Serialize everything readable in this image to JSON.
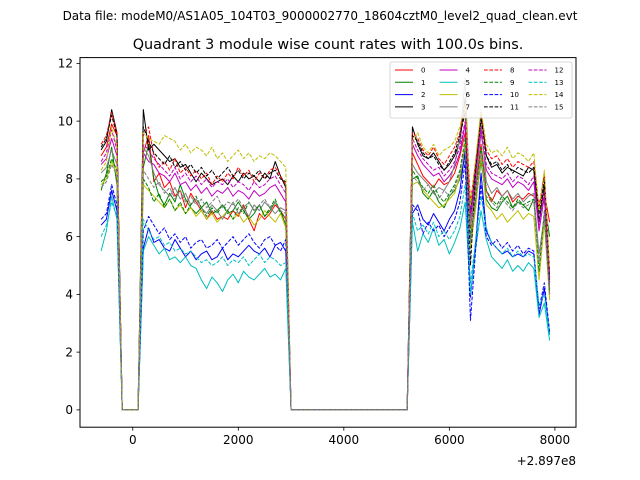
{
  "suptitle": "Data file: modeM0/AS1A05_104T03_9000002770_18604cztM0_level2_quad_clean.evt",
  "chart_data": {
    "type": "line",
    "title": "Quadrant 3 module wise count rates with 100.0s bins.",
    "xlabel": "",
    "ylabel": "",
    "x_offset_label": "+2.897e8",
    "xlim": [
      -1000,
      8400
    ],
    "ylim": [
      -0.6,
      12.2
    ],
    "xticks": [
      0,
      2000,
      4000,
      6000,
      8000
    ],
    "xtick_labels": [
      "0",
      "2000",
      "4000",
      "6000",
      "8000"
    ],
    "yticks": [
      0,
      2,
      4,
      6,
      8,
      10,
      12
    ],
    "ytick_labels": [
      "0",
      "2",
      "4",
      "6",
      "8",
      "10",
      "12"
    ],
    "grid": false,
    "legend_position": "top-right",
    "x_segments": [
      {
        "start": -600,
        "end": 3000,
        "step": 100
      },
      {
        "start": 5100,
        "end": 7900,
        "step": 100
      }
    ],
    "series": [
      {
        "name": "0",
        "color": "#ff0000",
        "dash": "solid",
        "seg1": [
          8.8,
          9.1,
          9.9,
          9.5,
          0,
          0,
          0,
          0,
          8.9,
          9.5,
          7.9,
          8.2,
          7.7,
          7.9,
          7.4,
          7.6,
          7.0,
          7.5,
          7.2,
          6.9,
          6.6,
          6.9,
          6.6,
          6.7,
          6.6,
          6.9,
          6.7,
          7.1,
          6.6,
          6.2,
          6.8,
          6.6,
          6.8,
          7.1,
          6.9,
          6.6,
          0
        ],
        "seg2": [
          0,
          0,
          8.9,
          8.5,
          8.1,
          7.9,
          7.7,
          8.0,
          7.8,
          7.9,
          8.2,
          8.8,
          9.6,
          6.3,
          7.7,
          9.2,
          7.6,
          7.2,
          7.6,
          7.4,
          7.6,
          7.2,
          7.4,
          7.3,
          7.5,
          7.4,
          7.2,
          7.5,
          6.5
        ]
      },
      {
        "name": "1",
        "color": "#008000",
        "dash": "solid",
        "seg1": [
          7.6,
          8.2,
          9.1,
          7.8,
          0,
          0,
          0,
          0,
          8.4,
          9.2,
          8.0,
          7.4,
          7.1,
          7.5,
          7.2,
          7.8,
          7.3,
          7.0,
          6.8,
          7.0,
          7.2,
          6.8,
          6.9,
          7.1,
          6.8,
          6.9,
          7.2,
          6.9,
          6.6,
          6.8,
          7.1,
          6.7,
          6.9,
          7.2,
          6.9,
          6.4,
          0
        ],
        "seg2": [
          0,
          0,
          8.0,
          8.1,
          7.5,
          7.3,
          7.6,
          7.2,
          7.0,
          7.4,
          7.6,
          8.0,
          8.8,
          6.0,
          7.2,
          8.6,
          7.3,
          7.0,
          6.9,
          7.2,
          7.4,
          7.0,
          7.2,
          7.1,
          6.9,
          7.3,
          7.0,
          7.2,
          6.0
        ]
      },
      {
        "name": "2",
        "color": "#0000ff",
        "dash": "solid",
        "seg1": [
          6.4,
          6.6,
          7.6,
          6.9,
          0,
          0,
          0,
          0,
          5.6,
          6.3,
          5.8,
          5.9,
          5.6,
          5.5,
          5.9,
          5.6,
          5.3,
          5.5,
          5.2,
          5.4,
          5.5,
          5.2,
          5.3,
          5.6,
          5.2,
          5.4,
          5.3,
          5.5,
          5.7,
          5.5,
          5.4,
          5.6,
          5.3,
          5.7,
          5.8,
          5.5,
          0
        ],
        "seg2": [
          0,
          0,
          6.8,
          7.1,
          6.6,
          6.4,
          6.8,
          6.5,
          6.2,
          6.6,
          6.9,
          7.6,
          9.0,
          3.9,
          5.8,
          8.2,
          6.2,
          5.8,
          5.6,
          5.4,
          5.5,
          5.3,
          5.4,
          5.3,
          5.5,
          5.4,
          3.3,
          4.2,
          2.6
        ]
      },
      {
        "name": "3",
        "color": "#000000",
        "dash": "solid",
        "seg1": [
          9.0,
          9.3,
          10.4,
          9.6,
          0,
          0,
          0,
          0,
          10.4,
          9.0,
          9.2,
          9.0,
          8.8,
          8.6,
          8.7,
          8.4,
          8.5,
          8.2,
          7.9,
          8.2,
          8.0,
          7.8,
          7.9,
          8.0,
          7.8,
          8.1,
          7.9,
          8.2,
          8.0,
          8.1,
          7.9,
          8.2,
          8.0,
          8.6,
          8.1,
          7.7,
          0
        ],
        "seg2": [
          0,
          0,
          9.8,
          9.2,
          8.8,
          8.7,
          8.9,
          8.6,
          8.3,
          8.5,
          8.8,
          9.3,
          10.8,
          6.8,
          8.4,
          10.3,
          8.8,
          8.4,
          8.5,
          8.2,
          8.4,
          8.3,
          8.2,
          8.1,
          8.4,
          8.3,
          6.5,
          7.8,
          4.5
        ]
      },
      {
        "name": "4",
        "color": "#c000c0",
        "dash": "solid",
        "seg1": [
          8.5,
          8.7,
          9.4,
          8.8,
          0,
          0,
          0,
          0,
          8.9,
          8.6,
          8.5,
          8.2,
          8.1,
          7.9,
          8.2,
          7.8,
          7.9,
          7.6,
          7.8,
          7.5,
          7.7,
          7.4,
          7.6,
          7.5,
          7.7,
          7.4,
          7.6,
          7.5,
          7.3,
          7.6,
          7.4,
          7.5,
          7.7,
          7.8,
          7.5,
          7.2,
          0
        ],
        "seg2": [
          0,
          0,
          9.2,
          8.8,
          8.5,
          8.3,
          8.1,
          8.2,
          7.9,
          8.1,
          8.4,
          8.9,
          9.9,
          6.6,
          8.0,
          9.6,
          8.3,
          8.0,
          7.9,
          7.8,
          8.0,
          7.7,
          7.9,
          7.8,
          7.6,
          7.9,
          6.2,
          7.4,
          4.2
        ]
      },
      {
        "name": "5",
        "color": "#00bfbf",
        "dash": "solid",
        "seg1": [
          5.5,
          6.2,
          7.4,
          6.6,
          0,
          0,
          0,
          0,
          5.5,
          6.0,
          5.7,
          5.4,
          5.6,
          5.2,
          5.3,
          5.1,
          5.3,
          5.0,
          4.9,
          4.5,
          4.2,
          4.6,
          4.4,
          4.1,
          4.5,
          4.7,
          4.4,
          4.8,
          4.6,
          4.5,
          4.7,
          4.9,
          4.6,
          4.7,
          4.5,
          4.9,
          0
        ],
        "seg2": [
          0,
          0,
          6.5,
          5.5,
          6.1,
          5.8,
          6.3,
          5.7,
          5.9,
          5.4,
          5.8,
          6.3,
          7.2,
          4.0,
          5.6,
          6.9,
          5.9,
          5.3,
          5.1,
          4.9,
          5.2,
          4.8,
          5.0,
          4.8,
          5.1,
          4.9,
          3.2,
          3.7,
          2.4
        ]
      },
      {
        "name": "6",
        "color": "#bfbf00",
        "dash": "solid",
        "seg1": [
          7.8,
          8.0,
          8.6,
          8.2,
          0,
          0,
          0,
          0,
          7.8,
          7.6,
          7.4,
          7.2,
          7.0,
          7.3,
          6.9,
          7.1,
          6.8,
          7.0,
          6.7,
          6.9,
          6.6,
          6.8,
          6.5,
          6.7,
          6.9,
          6.6,
          6.8,
          6.5,
          6.7,
          6.4,
          6.6,
          6.9,
          6.7,
          6.5,
          6.8,
          6.3,
          0
        ],
        "seg2": [
          0,
          0,
          7.8,
          7.9,
          7.6,
          7.4,
          7.2,
          7.0,
          7.1,
          7.3,
          7.5,
          8.1,
          9.2,
          5.6,
          7.0,
          8.8,
          7.1,
          6.9,
          6.6,
          6.8,
          6.5,
          6.7,
          6.9,
          6.6,
          6.8,
          6.7,
          4.5,
          6.5,
          3.8
        ]
      },
      {
        "name": "7",
        "color": "#808080",
        "dash": "solid",
        "seg1": [
          8.2,
          8.4,
          9.0,
          8.5,
          0,
          0,
          0,
          0,
          9.1,
          8.8,
          8.2,
          7.8,
          7.6,
          7.4,
          7.7,
          7.3,
          7.5,
          7.1,
          7.3,
          7.0,
          6.8,
          7.1,
          6.9,
          6.6,
          6.9,
          7.2,
          6.8,
          7.0,
          6.7,
          7.1,
          6.9,
          7.2,
          7.0,
          6.8,
          7.0,
          6.9,
          0
        ],
        "seg2": [
          0,
          0,
          8.5,
          8.2,
          8.0,
          7.8,
          7.5,
          7.7,
          7.6,
          7.9,
          8.5,
          9.4,
          11.5,
          6.4,
          7.8,
          9.9,
          7.9,
          7.5,
          7.7,
          7.4,
          7.6,
          7.3,
          7.5,
          7.2,
          7.4,
          7.5,
          5.4,
          6.7,
          4.0
        ]
      },
      {
        "name": "8",
        "color": "#ff0000",
        "dash": "dashed",
        "seg1": [
          9.2,
          9.5,
          10.3,
          9.6,
          0,
          0,
          0,
          0,
          9.5,
          9.8,
          8.8,
          8.4,
          8.6,
          8.3,
          8.7,
          8.2,
          8.4,
          8.1,
          8.3,
          8.0,
          8.2,
          7.8,
          8.1,
          7.9,
          8.2,
          8.0,
          8.4,
          8.1,
          8.3,
          7.9,
          8.2,
          8.0,
          8.3,
          8.4,
          8.1,
          7.8,
          0
        ],
        "seg2": [
          0,
          0,
          9.6,
          9.4,
          9.0,
          8.8,
          9.1,
          8.7,
          8.5,
          8.8,
          9.1,
          9.6,
          10.5,
          7.2,
          8.6,
          10.2,
          9.0,
          8.7,
          8.8,
          8.5,
          8.7,
          8.4,
          8.6,
          8.5,
          8.4,
          8.6,
          7.0,
          8.2,
          4.8
        ]
      },
      {
        "name": "9",
        "color": "#008000",
        "dash": "dashed",
        "seg1": [
          7.9,
          8.1,
          8.7,
          8.3,
          0,
          0,
          0,
          0,
          8.0,
          7.7,
          7.2,
          7.5,
          7.0,
          7.3,
          6.9,
          7.2,
          6.8,
          7.1,
          7.4,
          7.0,
          6.7,
          7.0,
          6.8,
          7.1,
          6.9,
          6.6,
          7.0,
          6.8,
          7.2,
          6.9,
          7.1,
          6.7,
          7.0,
          7.3,
          6.8,
          6.7,
          0
        ],
        "seg2": [
          0,
          0,
          8.3,
          8.0,
          7.7,
          7.5,
          7.8,
          7.4,
          7.2,
          7.5,
          7.8,
          8.3,
          9.4,
          5.9,
          7.4,
          9.1,
          7.6,
          7.3,
          7.1,
          7.4,
          7.2,
          7.0,
          7.3,
          7.1,
          7.2,
          7.3,
          4.8,
          6.9,
          4.1
        ]
      },
      {
        "name": "10",
        "color": "#0000ff",
        "dash": "dashed",
        "seg1": [
          6.6,
          6.8,
          7.8,
          7.1,
          0,
          0,
          0,
          0,
          6.2,
          6.7,
          6.4,
          6.1,
          6.3,
          5.9,
          6.1,
          5.8,
          6.0,
          5.6,
          5.8,
          5.9,
          5.6,
          5.7,
          5.9,
          5.6,
          5.8,
          6.0,
          5.7,
          5.9,
          6.1,
          5.8,
          5.6,
          5.9,
          6.0,
          5.7,
          5.5,
          5.9,
          0
        ],
        "seg2": [
          0,
          0,
          7.1,
          6.9,
          6.1,
          6.5,
          6.2,
          6.4,
          6.0,
          6.3,
          6.6,
          7.2,
          8.6,
          3.1,
          5.6,
          7.8,
          6.0,
          5.7,
          5.9,
          5.6,
          5.8,
          5.5,
          5.7,
          5.4,
          5.6,
          5.5,
          3.5,
          4.4,
          2.7
        ]
      },
      {
        "name": "11",
        "color": "#000000",
        "dash": "dashed",
        "seg1": [
          9.1,
          9.4,
          10.2,
          9.5,
          0,
          0,
          0,
          0,
          9.8,
          9.3,
          8.9,
          8.7,
          8.5,
          8.8,
          8.4,
          8.6,
          8.3,
          8.5,
          8.2,
          8.4,
          8.1,
          8.3,
          8.0,
          8.2,
          8.4,
          8.1,
          8.3,
          8.0,
          8.2,
          8.1,
          8.3,
          8.0,
          8.2,
          8.3,
          8.0,
          7.9,
          0
        ],
        "seg2": [
          0,
          0,
          9.5,
          9.3,
          8.9,
          8.7,
          8.8,
          8.5,
          8.3,
          8.6,
          8.9,
          9.5,
          10.3,
          5.0,
          8.3,
          10.1,
          8.8,
          8.5,
          8.6,
          8.3,
          8.5,
          8.2,
          8.4,
          8.3,
          8.2,
          8.4,
          6.8,
          8.0,
          4.6
        ]
      },
      {
        "name": "12",
        "color": "#c000c0",
        "dash": "dashed",
        "seg1": [
          8.6,
          8.9,
          9.7,
          9.0,
          0,
          0,
          0,
          0,
          9.2,
          9.0,
          8.7,
          8.5,
          8.3,
          8.1,
          8.4,
          8.0,
          8.2,
          7.9,
          8.1,
          7.8,
          8.0,
          7.7,
          7.9,
          7.8,
          8.0,
          7.7,
          7.9,
          7.8,
          7.6,
          7.9,
          7.7,
          7.8,
          8.0,
          8.1,
          7.8,
          7.5,
          0
        ],
        "seg2": [
          0,
          0,
          9.4,
          9.0,
          8.7,
          8.5,
          8.3,
          8.4,
          8.1,
          8.3,
          8.6,
          9.1,
          10.0,
          6.8,
          8.2,
          9.8,
          8.5,
          8.2,
          8.1,
          8.0,
          8.2,
          7.9,
          8.1,
          8.0,
          7.8,
          8.1,
          6.4,
          7.6,
          4.4
        ]
      },
      {
        "name": "13",
        "color": "#00bfbf",
        "dash": "dashed",
        "seg1": [
          6.0,
          6.4,
          7.2,
          6.7,
          0,
          0,
          0,
          0,
          6.6,
          6.2,
          5.9,
          6.0,
          5.7,
          5.8,
          5.5,
          5.6,
          5.4,
          5.5,
          5.3,
          5.1,
          5.2,
          5.0,
          5.1,
          5.3,
          5.0,
          5.2,
          5.1,
          5.3,
          5.0,
          5.2,
          5.4,
          5.1,
          5.3,
          5.2,
          5.0,
          5.1,
          0
        ],
        "seg2": [
          0,
          0,
          6.8,
          6.2,
          6.4,
          6.1,
          6.5,
          6.0,
          6.2,
          5.9,
          6.2,
          6.7,
          7.8,
          4.4,
          5.9,
          7.4,
          6.3,
          5.8,
          5.6,
          5.4,
          5.6,
          5.3,
          5.5,
          5.3,
          5.4,
          5.3,
          3.6,
          4.0,
          2.6
        ]
      },
      {
        "name": "14",
        "color": "#bfbf00",
        "dash": "dashed",
        "seg1": [
          8.3,
          8.6,
          9.8,
          9.1,
          0,
          0,
          0,
          0,
          9.6,
          9.4,
          9.3,
          9.2,
          9.5,
          9.4,
          9.3,
          9.0,
          9.2,
          8.9,
          9.1,
          9.0,
          8.8,
          9.1,
          8.7,
          8.9,
          8.6,
          8.8,
          9.0,
          8.7,
          8.9,
          8.6,
          8.8,
          8.7,
          8.9,
          8.8,
          8.6,
          8.4,
          0
        ],
        "seg2": [
          0,
          0,
          9.3,
          9.6,
          9.1,
          8.9,
          9.2,
          8.8,
          9.0,
          9.1,
          9.3,
          9.8,
          10.6,
          7.1,
          8.7,
          10.4,
          9.2,
          8.9,
          9.0,
          8.8,
          9.1,
          8.7,
          8.9,
          8.8,
          8.6,
          8.9,
          6.9,
          8.3,
          4.9
        ]
      },
      {
        "name": "15",
        "color": "#808080",
        "dash": "dashed",
        "seg1": [
          7.7,
          7.9,
          8.5,
          8.1,
          0,
          0,
          0,
          0,
          8.3,
          8.0,
          7.7,
          7.9,
          7.5,
          7.7,
          7.3,
          7.6,
          7.2,
          7.4,
          7.1,
          7.3,
          7.0,
          7.2,
          7.4,
          7.0,
          7.2,
          7.1,
          7.3,
          7.0,
          7.2,
          6.9,
          7.1,
          7.3,
          7.0,
          7.2,
          6.9,
          6.8,
          0
        ],
        "seg2": [
          0,
          0,
          8.1,
          7.9,
          7.6,
          7.8,
          7.5,
          7.3,
          7.6,
          7.4,
          7.7,
          8.2,
          9.1,
          5.8,
          7.3,
          8.9,
          7.4,
          7.2,
          7.0,
          7.3,
          7.1,
          6.9,
          7.2,
          7.0,
          7.1,
          7.2,
          5.1,
          6.8,
          4.0
        ]
      }
    ]
  }
}
